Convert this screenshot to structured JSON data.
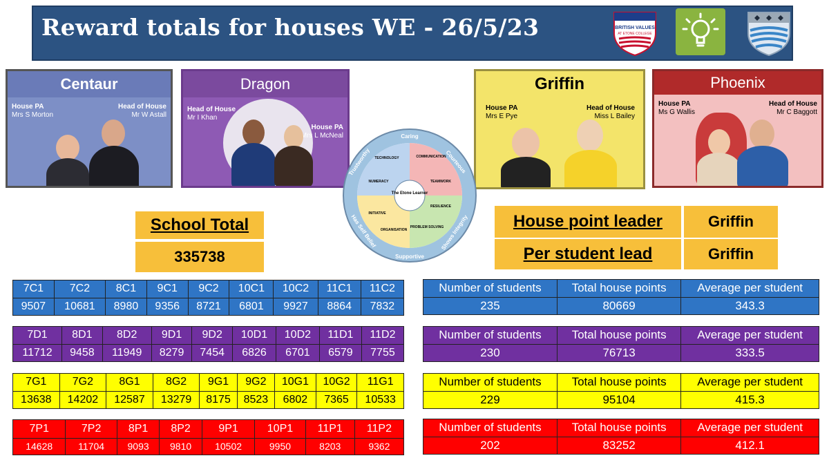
{
  "header": {
    "title": "Reward totals for houses  WE - 26/5/23",
    "logo_left_text1": "BRITISH VALUES",
    "logo_left_text2": "AT ETONE COLLEGE"
  },
  "houses": {
    "centaur": {
      "name": "Centaur",
      "pa_label": "House PA",
      "pa_name": "Mrs S Morton",
      "head_label": "Head of House",
      "head_name": "Mr W Astall"
    },
    "dragon": {
      "name": "Dragon",
      "head_label": "Head of House",
      "head_name": "Mr I Khan",
      "pa_label": "House PA",
      "pa_name": "Mrs L McNeal"
    },
    "griffin": {
      "name": "Griffin",
      "pa_label": "House PA",
      "pa_name": "Mrs E Pye",
      "head_label": "Head of House",
      "head_name": "Miss L Bailey"
    },
    "phoenix": {
      "name": "Phoenix",
      "pa_label": "House PA",
      "pa_name": "Ms G Wallis",
      "head_label": "Head of House",
      "head_name": "Mr C Baggott"
    }
  },
  "wheel": {
    "center": "The Etone Learner",
    "outer": [
      "Caring",
      "Courteous",
      "Shows Integrity",
      "Supportive",
      "Has Self Belief",
      "Trustworthy"
    ],
    "segments": [
      "TECHNOLOGY",
      "COMMUNICATION",
      "NUMERACY",
      "TEAMWORK",
      "INITIATIVE",
      "RESILIENCE",
      "ORGANISATION",
      "PROBLEM SOLVING"
    ]
  },
  "school_total": {
    "label": "School Total",
    "value": "335738"
  },
  "leaders": {
    "house_point_label": "House point leader",
    "house_point_value": "Griffin",
    "per_student_label": "Per student lead",
    "per_student_value": "Griffin"
  },
  "forms": {
    "centaur": {
      "headers": [
        "7C1",
        "7C2",
        "8C1",
        "9C1",
        "9C2",
        "10C1",
        "10C2",
        "11C1",
        "11C2"
      ],
      "values": [
        "9507",
        "10681",
        "8980",
        "9356",
        "8721",
        "6801",
        "9927",
        "8864",
        "7832"
      ]
    },
    "dragon": {
      "headers": [
        "7D1",
        "8D1",
        "8D2",
        "9D1",
        "9D2",
        "10D1",
        "10D2",
        "11D1",
        "11D2"
      ],
      "values": [
        "11712",
        "9458",
        "11949",
        "8279",
        "7454",
        "6826",
        "6701",
        "6579",
        "7755"
      ]
    },
    "griffin": {
      "headers": [
        "7G1",
        "7G2",
        "8G1",
        "8G2",
        "9G1",
        "9G2",
        "10G1",
        "10G2",
        "11G1"
      ],
      "values": [
        "13638",
        "14202",
        "12587",
        "13279",
        "8175",
        "8523",
        "6802",
        "7365",
        "10533"
      ]
    },
    "phoenix": {
      "headers": [
        "7P1",
        "7P2",
        "8P1",
        "8P2",
        "9P1",
        "10P1",
        "11P1",
        "11P2"
      ],
      "values": [
        "14628",
        "11704",
        "9093",
        "9810",
        "10502",
        "9950",
        "8203",
        "9362"
      ]
    }
  },
  "stats": {
    "headers": [
      "Number of students",
      "Total house points",
      "Average per student"
    ],
    "centaur": [
      "235",
      "80669",
      "343.3"
    ],
    "dragon": [
      "230",
      "76713",
      "333.5"
    ],
    "griffin": [
      "229",
      "95104",
      "415.3"
    ],
    "phoenix": [
      "202",
      "83252",
      "412.1"
    ]
  }
}
